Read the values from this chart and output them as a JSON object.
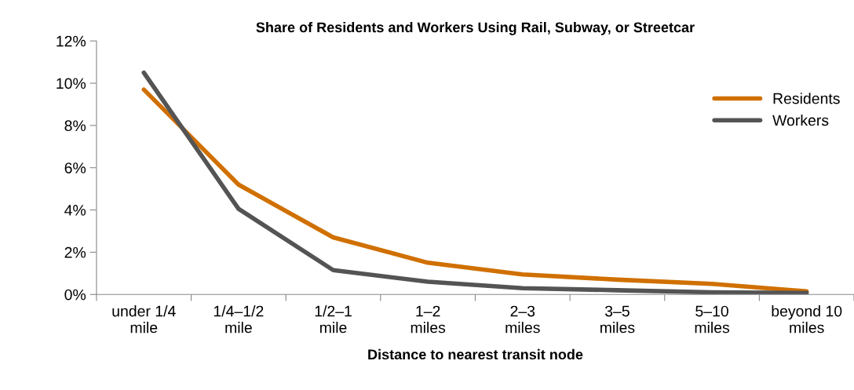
{
  "chart_data": {
    "type": "line",
    "title": "Share of Residents and Workers Using Rail, Subway, or Streetcar",
    "xlabel": "Distance to nearest transit node",
    "categories": [
      "under 1/4\nmile",
      "1/4–1/2\nmile",
      "1/2–1\nmile",
      "1–2\nmiles",
      "2–3\nmiles",
      "3–5\nmiles",
      "5–10\nmiles",
      "beyond 10\nmiles"
    ],
    "series": [
      {
        "name": "Residents",
        "color": "#d07000",
        "values": [
          9.7,
          5.2,
          2.7,
          1.5,
          0.95,
          0.7,
          0.5,
          0.15
        ]
      },
      {
        "name": "Workers",
        "color": "#545454",
        "values": [
          10.5,
          4.05,
          1.15,
          0.6,
          0.3,
          0.2,
          0.1,
          0.07
        ]
      }
    ],
    "ylim": [
      0,
      12
    ],
    "yticks": [
      {
        "value": 0,
        "label": "0%"
      },
      {
        "value": 2,
        "label": "2%"
      },
      {
        "value": 4,
        "label": "4%"
      },
      {
        "value": 6,
        "label": "6%"
      },
      {
        "value": 8,
        "label": "8%"
      },
      {
        "value": 10,
        "label": "10%"
      },
      {
        "value": 12,
        "label": "12%"
      }
    ],
    "grid": false,
    "legend": "top right",
    "marker": "none",
    "line_style": "solid"
  }
}
